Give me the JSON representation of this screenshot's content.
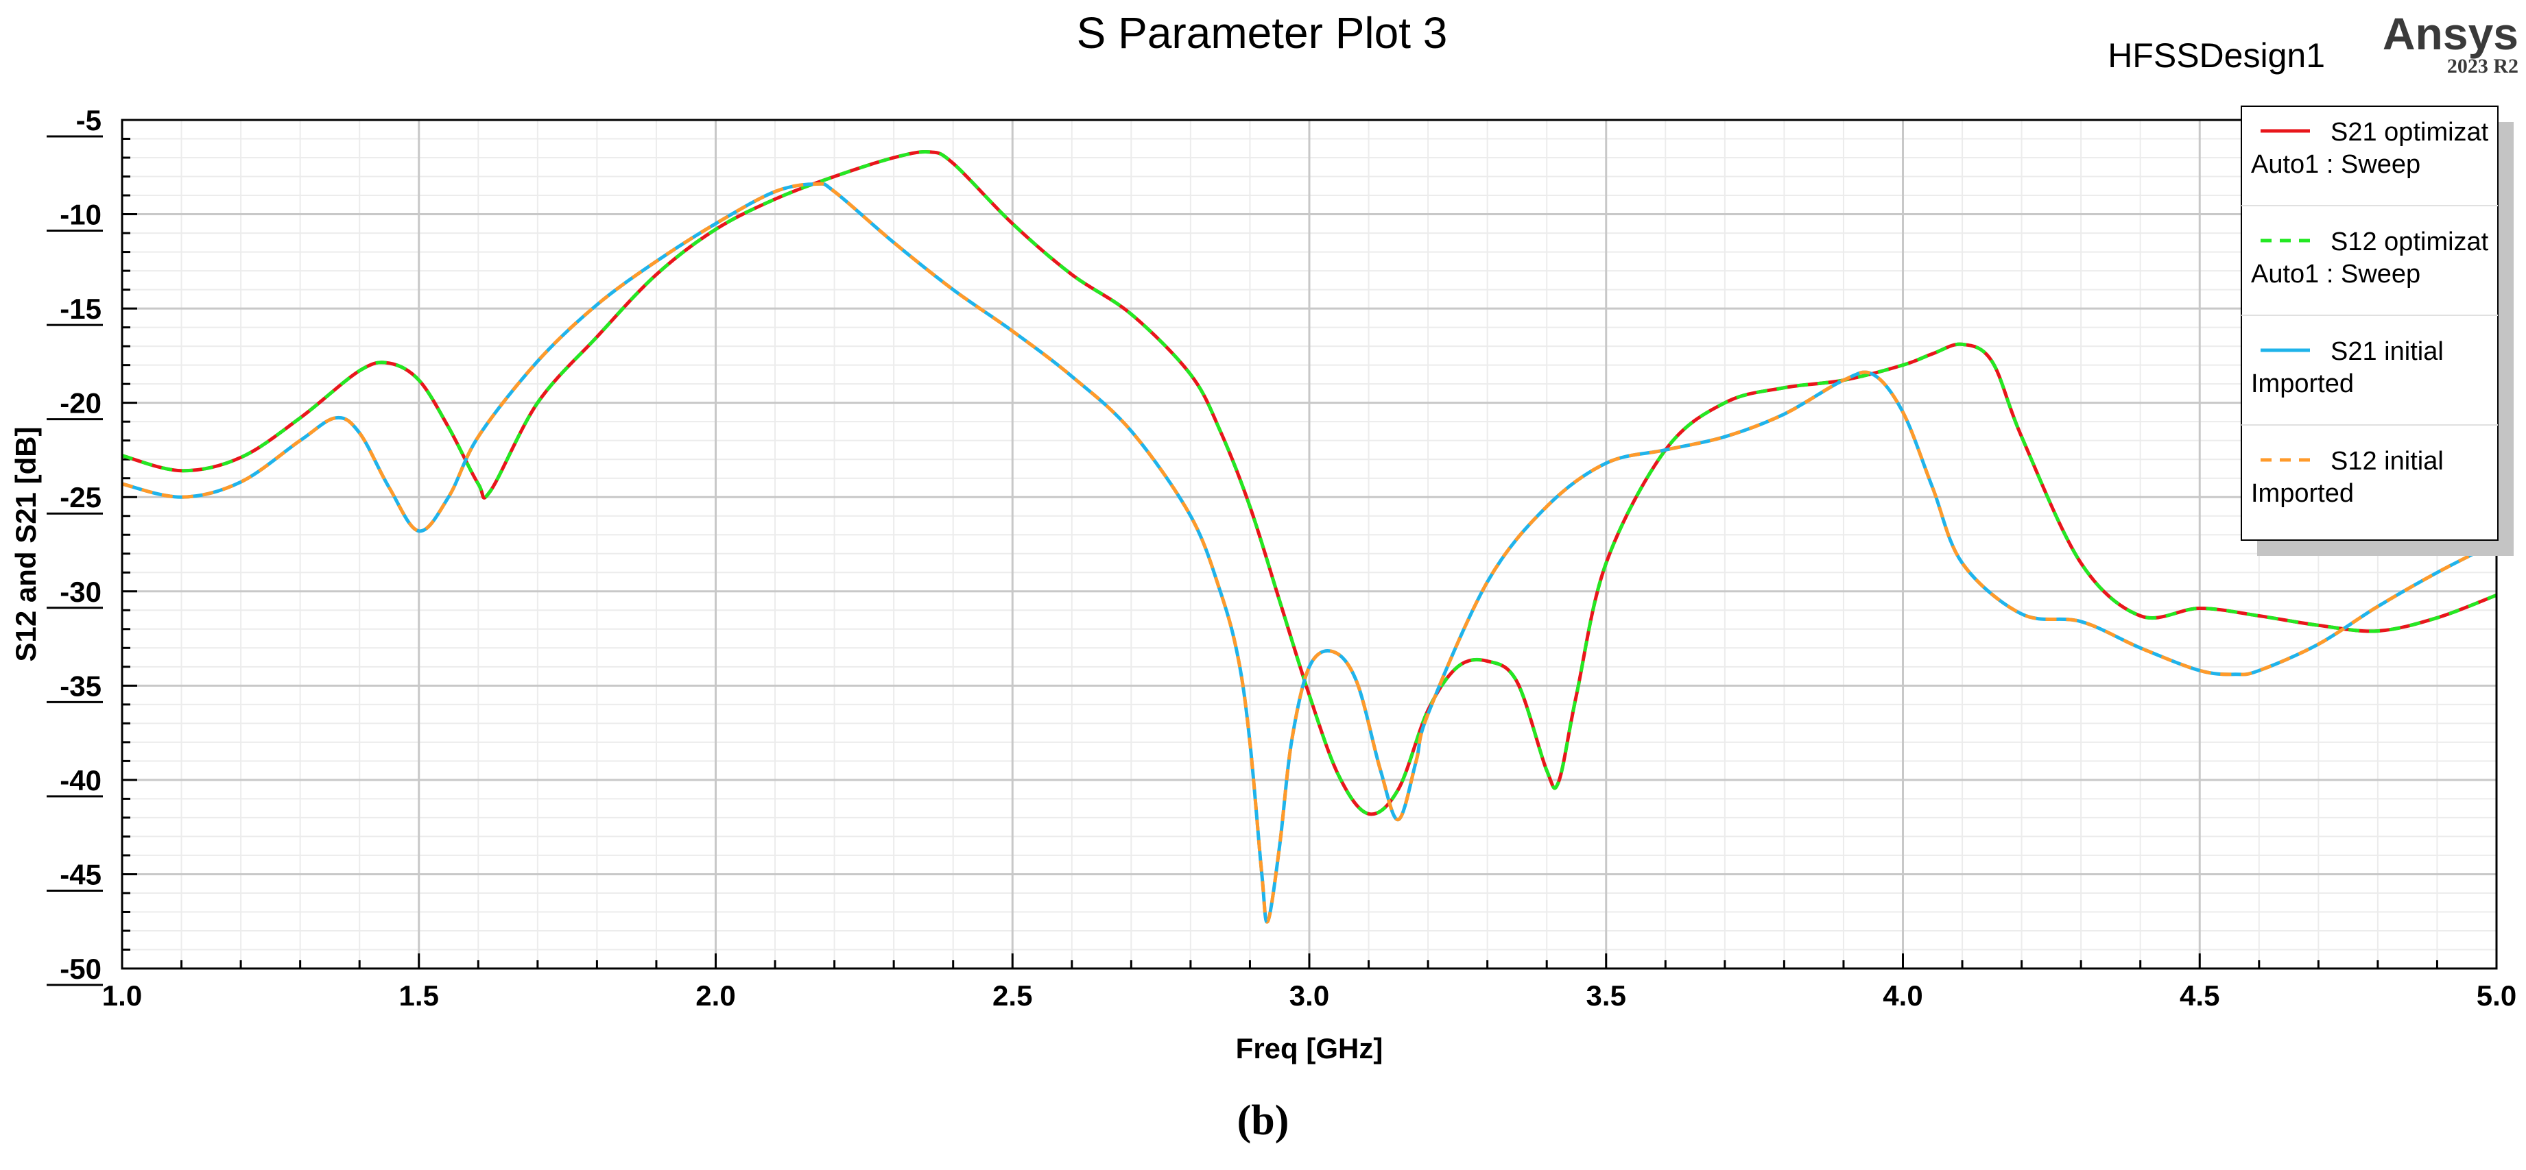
{
  "brand": {
    "name": "Ansys",
    "version": "2023 R2"
  },
  "design_name": "HFSSDesign1",
  "caption": "(b)",
  "colors": {
    "s21_opt": "#e8161b",
    "s12_opt": "#23e823",
    "s21_init": "#1fb3ea",
    "s12_init": "#ff9a2a"
  },
  "chart_data": {
    "type": "line",
    "title": "S Parameter Plot 3",
    "xlabel": "Freq [GHz]",
    "ylabel": "S12 and S21 [dB]",
    "xlim": [
      1.0,
      5.0
    ],
    "ylim": [
      -50,
      -5
    ],
    "xticks": [
      "1.0",
      "1.5",
      "2.0",
      "2.5",
      "3.0",
      "3.5",
      "4.0",
      "4.5",
      "5.0"
    ],
    "yticks": [
      "-5",
      "-10",
      "-15",
      "-20",
      "-25",
      "-30",
      "-35",
      "-40",
      "-45",
      "-50"
    ],
    "grid": true,
    "legend_position": "top-right",
    "series": [
      {
        "name": "S21 optimizat",
        "source": "Auto1 : Sweep",
        "style": "solid",
        "color": "#e8161b",
        "x": [
          1.0,
          1.1,
          1.2,
          1.3,
          1.4,
          1.45,
          1.5,
          1.55,
          1.6,
          1.62,
          1.7,
          1.8,
          1.9,
          2.0,
          2.1,
          2.2,
          2.3,
          2.36,
          2.4,
          2.5,
          2.6,
          2.7,
          2.8,
          2.85,
          2.9,
          2.95,
          3.0,
          3.05,
          3.1,
          3.15,
          3.2,
          3.25,
          3.3,
          3.35,
          3.4,
          3.42,
          3.45,
          3.5,
          3.6,
          3.7,
          3.8,
          3.9,
          4.0,
          4.05,
          4.1,
          4.15,
          4.2,
          4.3,
          4.4,
          4.5,
          4.6,
          4.7,
          4.8,
          4.9,
          5.0
        ],
        "y": [
          -22.8,
          -23.6,
          -22.9,
          -20.8,
          -18.3,
          -17.9,
          -18.8,
          -21.3,
          -24.3,
          -24.7,
          -20.0,
          -16.5,
          -13.2,
          -10.8,
          -9.2,
          -8.0,
          -7.0,
          -6.7,
          -7.3,
          -10.5,
          -13.2,
          -15.3,
          -18.5,
          -21.5,
          -25.5,
          -30.5,
          -35.5,
          -39.8,
          -41.8,
          -40.5,
          -36.3,
          -34.0,
          -33.7,
          -34.8,
          -39.5,
          -40.1,
          -35.5,
          -28.5,
          -22.5,
          -20.0,
          -19.2,
          -18.8,
          -18.0,
          -17.4,
          -16.9,
          -17.8,
          -21.8,
          -28.5,
          -31.3,
          -30.9,
          -31.3,
          -31.8,
          -32.1,
          -31.4,
          -30.2
        ]
      },
      {
        "name": "S12 optimizat",
        "source": "Auto1 : Sweep",
        "style": "dashed",
        "color": "#23e823",
        "x": [
          1.0,
          1.1,
          1.2,
          1.3,
          1.4,
          1.45,
          1.5,
          1.55,
          1.6,
          1.62,
          1.7,
          1.8,
          1.9,
          2.0,
          2.1,
          2.2,
          2.3,
          2.36,
          2.4,
          2.5,
          2.6,
          2.7,
          2.8,
          2.85,
          2.9,
          2.95,
          3.0,
          3.05,
          3.1,
          3.15,
          3.2,
          3.25,
          3.3,
          3.35,
          3.4,
          3.42,
          3.45,
          3.5,
          3.6,
          3.7,
          3.8,
          3.9,
          4.0,
          4.05,
          4.1,
          4.15,
          4.2,
          4.3,
          4.4,
          4.5,
          4.6,
          4.7,
          4.8,
          4.9,
          5.0
        ],
        "y": [
          -22.8,
          -23.6,
          -22.9,
          -20.8,
          -18.3,
          -17.9,
          -18.8,
          -21.3,
          -24.3,
          -24.7,
          -20.0,
          -16.5,
          -13.2,
          -10.8,
          -9.2,
          -8.0,
          -7.0,
          -6.7,
          -7.3,
          -10.5,
          -13.2,
          -15.3,
          -18.5,
          -21.5,
          -25.5,
          -30.5,
          -35.5,
          -39.8,
          -41.8,
          -40.5,
          -36.3,
          -34.0,
          -33.7,
          -34.8,
          -39.5,
          -40.1,
          -35.5,
          -28.5,
          -22.5,
          -20.0,
          -19.2,
          -18.8,
          -18.0,
          -17.4,
          -16.9,
          -17.8,
          -21.8,
          -28.5,
          -31.3,
          -30.9,
          -31.3,
          -31.8,
          -32.1,
          -31.4,
          -30.2
        ]
      },
      {
        "name": "S21 initial",
        "source": "Imported",
        "style": "solid",
        "color": "#1fb3ea",
        "x": [
          1.0,
          1.1,
          1.2,
          1.3,
          1.36,
          1.4,
          1.45,
          1.5,
          1.55,
          1.6,
          1.7,
          1.8,
          1.9,
          2.0,
          2.1,
          2.17,
          2.2,
          2.3,
          2.4,
          2.5,
          2.6,
          2.7,
          2.8,
          2.85,
          2.88,
          2.9,
          2.92,
          2.93,
          2.95,
          2.97,
          3.0,
          3.04,
          3.08,
          3.12,
          3.15,
          3.18,
          3.2,
          3.3,
          3.4,
          3.5,
          3.6,
          3.7,
          3.8,
          3.9,
          3.95,
          4.0,
          4.05,
          4.1,
          4.2,
          4.3,
          4.4,
          4.5,
          4.56,
          4.6,
          4.7,
          4.8,
          4.9,
          5.0
        ],
        "y": [
          -24.3,
          -25.0,
          -24.2,
          -22.0,
          -20.8,
          -21.6,
          -24.5,
          -26.8,
          -25.0,
          -21.8,
          -17.8,
          -14.8,
          -12.5,
          -10.5,
          -8.8,
          -8.4,
          -8.8,
          -11.5,
          -14.0,
          -16.2,
          -18.6,
          -21.5,
          -26.0,
          -30.0,
          -33.5,
          -38.0,
          -45.0,
          -47.5,
          -43.5,
          -38.0,
          -34.0,
          -33.2,
          -34.8,
          -39.5,
          -42.1,
          -39.0,
          -36.5,
          -29.5,
          -25.5,
          -23.2,
          -22.5,
          -21.8,
          -20.6,
          -18.8,
          -18.5,
          -20.5,
          -24.5,
          -28.5,
          -31.2,
          -31.6,
          -33.0,
          -34.2,
          -34.4,
          -34.2,
          -32.8,
          -30.8,
          -29.0,
          -27.4
        ]
      },
      {
        "name": "S12 initial",
        "source": "Imported",
        "style": "dashed",
        "color": "#ff9a2a",
        "x": [
          1.0,
          1.1,
          1.2,
          1.3,
          1.36,
          1.4,
          1.45,
          1.5,
          1.55,
          1.6,
          1.7,
          1.8,
          1.9,
          2.0,
          2.1,
          2.17,
          2.2,
          2.3,
          2.4,
          2.5,
          2.6,
          2.7,
          2.8,
          2.85,
          2.88,
          2.9,
          2.92,
          2.93,
          2.95,
          2.97,
          3.0,
          3.04,
          3.08,
          3.12,
          3.15,
          3.18,
          3.2,
          3.3,
          3.4,
          3.5,
          3.6,
          3.7,
          3.8,
          3.9,
          3.95,
          4.0,
          4.05,
          4.1,
          4.2,
          4.3,
          4.4,
          4.5,
          4.56,
          4.6,
          4.7,
          4.8,
          4.9,
          5.0
        ],
        "y": [
          -24.3,
          -25.0,
          -24.2,
          -22.0,
          -20.8,
          -21.6,
          -24.5,
          -26.8,
          -25.0,
          -21.8,
          -17.8,
          -14.8,
          -12.5,
          -10.5,
          -8.8,
          -8.4,
          -8.8,
          -11.5,
          -14.0,
          -16.2,
          -18.6,
          -21.5,
          -26.0,
          -30.0,
          -33.5,
          -38.0,
          -45.0,
          -47.5,
          -43.5,
          -38.0,
          -34.0,
          -33.2,
          -34.8,
          -39.5,
          -42.1,
          -39.0,
          -36.5,
          -29.5,
          -25.5,
          -23.2,
          -22.5,
          -21.8,
          -20.6,
          -18.8,
          -18.5,
          -20.5,
          -24.5,
          -28.5,
          -31.2,
          -31.6,
          -33.0,
          -34.2,
          -34.4,
          -34.2,
          -32.8,
          -30.8,
          -29.0,
          -27.4
        ]
      }
    ]
  }
}
